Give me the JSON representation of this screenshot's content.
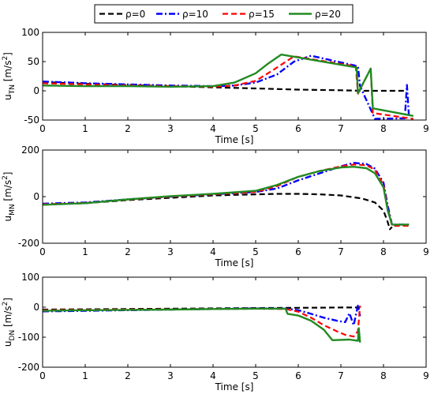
{
  "legend": {
    "placement": "top-center",
    "items": [
      {
        "label": "ρ=0",
        "color": "#000000",
        "dash": "dashed"
      },
      {
        "label": "ρ=10",
        "color": "#0000ff",
        "dash": "dashdot"
      },
      {
        "label": "ρ=15",
        "color": "#ff0000",
        "dash": "dashed"
      },
      {
        "label": "ρ=20",
        "color": "#228b22",
        "dash": "solid"
      }
    ]
  },
  "chart_data": [
    {
      "type": "line",
      "xlabel": "Time [s]",
      "ylabel": {
        "base": "u",
        "sub": "TN",
        "unit_open": "  [m/s",
        "sup": "2",
        "unit_close": "]"
      },
      "xlim": [
        0,
        9
      ],
      "ylim": [
        -50,
        100
      ],
      "xticks": [
        0,
        1,
        2,
        3,
        4,
        5,
        6,
        7,
        8,
        9
      ],
      "yticks": [
        -50,
        0,
        50,
        100
      ],
      "grid": false,
      "series": [
        {
          "name": "ρ=0",
          "x": [
            0,
            1,
            2,
            3,
            4,
            5,
            6,
            7,
            7.5,
            8.5
          ],
          "y": [
            15,
            12,
            10,
            8,
            6,
            4,
            2,
            1,
            0,
            0
          ]
        },
        {
          "name": "ρ=10",
          "x": [
            0,
            1,
            2,
            3,
            4,
            4.5,
            5,
            5.5,
            5.9,
            6.3,
            7.4,
            7.45,
            7.8,
            8.5,
            8.55,
            8.6
          ],
          "y": [
            16,
            13,
            11,
            9,
            8,
            9,
            14,
            28,
            50,
            60,
            42,
            8,
            -48,
            -47,
            10,
            -47
          ]
        },
        {
          "name": "ρ=15",
          "x": [
            0,
            1,
            2,
            3,
            4,
            4.5,
            5,
            5.4,
            5.9,
            7.35,
            7.4,
            7.7,
            7.75,
            8.7
          ],
          "y": [
            13,
            11,
            9,
            8,
            7,
            9,
            17,
            35,
            59,
            42,
            -5,
            38,
            -38,
            -48
          ]
        },
        {
          "name": "ρ=20",
          "x": [
            0,
            1,
            2,
            3,
            4,
            4.5,
            5,
            5.3,
            5.6,
            7.37,
            7.4,
            7.7,
            7.75,
            8.7
          ],
          "y": [
            9,
            8,
            8,
            7,
            8,
            14,
            30,
            47,
            62,
            40,
            -4,
            38,
            -30,
            -43
          ]
        }
      ]
    },
    {
      "type": "line",
      "xlabel": "Time [s]",
      "ylabel": {
        "base": "u",
        "sub": "MN",
        "unit_open": "  [m/s",
        "sup": "2",
        "unit_close": "]"
      },
      "xlim": [
        0,
        9
      ],
      "ylim": [
        -200,
        200
      ],
      "xticks": [
        0,
        1,
        2,
        3,
        4,
        5,
        6,
        7,
        8,
        9
      ],
      "yticks": [
        -200,
        0,
        200
      ],
      "grid": false,
      "series": [
        {
          "name": "ρ=0",
          "x": [
            0,
            1,
            2,
            3,
            4,
            5,
            5.5,
            6,
            6.5,
            7,
            7.5,
            7.8,
            8.0,
            8.1,
            8.15,
            8.2
          ],
          "y": [
            -35,
            -28,
            -15,
            -5,
            5,
            10,
            12,
            12,
            10,
            5,
            -8,
            -25,
            -60,
            -110,
            -140,
            -130
          ]
        },
        {
          "name": "ρ=10",
          "x": [
            0,
            1,
            2,
            3,
            4,
            5,
            5.5,
            6,
            6.5,
            7,
            7.3,
            7.6,
            7.8,
            8.0,
            8.1,
            8.2,
            8.6
          ],
          "y": [
            -30,
            -25,
            -12,
            0,
            10,
            20,
            35,
            70,
            100,
            130,
            145,
            140,
            120,
            60,
            -40,
            -120,
            -120
          ]
        },
        {
          "name": "ρ=15",
          "x": [
            0,
            1,
            2,
            3,
            4,
            5,
            5.5,
            6,
            6.5,
            7,
            7.3,
            7.6,
            7.8,
            8.0,
            8.1,
            8.2,
            8.6
          ],
          "y": [
            -33,
            -27,
            -13,
            0,
            10,
            20,
            45,
            85,
            110,
            130,
            138,
            135,
            115,
            50,
            -50,
            -125,
            -125
          ]
        },
        {
          "name": "ρ=20",
          "x": [
            0,
            1,
            2,
            3,
            4,
            5,
            5.5,
            6,
            6.5,
            7,
            7.3,
            7.6,
            7.8,
            8.0,
            8.1,
            8.2,
            8.6
          ],
          "y": [
            -35,
            -28,
            -12,
            2,
            12,
            25,
            50,
            85,
            110,
            125,
            128,
            122,
            100,
            40,
            -60,
            -120,
            -120
          ]
        }
      ]
    },
    {
      "type": "line",
      "xlabel": "Time [s]",
      "ylabel": {
        "base": "u",
        "sub": "DN",
        "unit_open": "  [m/s",
        "sup": "2",
        "unit_close": "]"
      },
      "xlim": [
        0,
        9
      ],
      "ylim": [
        -200,
        100
      ],
      "xticks": [
        0,
        1,
        2,
        3,
        4,
        5,
        6,
        7,
        8,
        9
      ],
      "yticks": [
        -200,
        -100,
        0,
        100
      ],
      "grid": false,
      "series": [
        {
          "name": "ρ=0",
          "x": [
            0,
            1,
            2,
            3,
            4,
            5,
            6,
            7,
            7.45
          ],
          "y": [
            -8,
            -7,
            -6,
            -5,
            -4,
            -3,
            -2,
            -1,
            -1
          ]
        },
        {
          "name": "ρ=10",
          "x": [
            0,
            1,
            2,
            3,
            4,
            5,
            5.7,
            6.0,
            6.3,
            6.6,
            6.9,
            7.1,
            7.2,
            7.3,
            7.4,
            7.45
          ],
          "y": [
            -14,
            -12,
            -10,
            -8,
            -6,
            -4,
            -5,
            -10,
            -22,
            -35,
            -45,
            -50,
            -20,
            -60,
            5,
            -30
          ]
        },
        {
          "name": "ρ=15",
          "x": [
            0,
            1,
            2,
            3,
            4,
            5,
            5.7,
            6.0,
            6.3,
            6.6,
            6.9,
            7.1,
            7.3,
            7.4,
            7.45
          ],
          "y": [
            -10,
            -9,
            -8,
            -7,
            -6,
            -5,
            -6,
            -15,
            -35,
            -60,
            -80,
            -92,
            -98,
            -80,
            5
          ]
        },
        {
          "name": "ρ=20",
          "x": [
            0,
            1,
            2,
            3,
            4,
            5,
            5.7,
            5.75,
            6.0,
            6.3,
            6.6,
            6.8,
            7.2,
            7.4,
            7.42,
            7.45
          ],
          "y": [
            -12,
            -10,
            -9,
            -8,
            -6,
            -5,
            -5,
            -22,
            -28,
            -45,
            -75,
            -110,
            -108,
            -112,
            -70,
            -118
          ]
        }
      ]
    }
  ]
}
